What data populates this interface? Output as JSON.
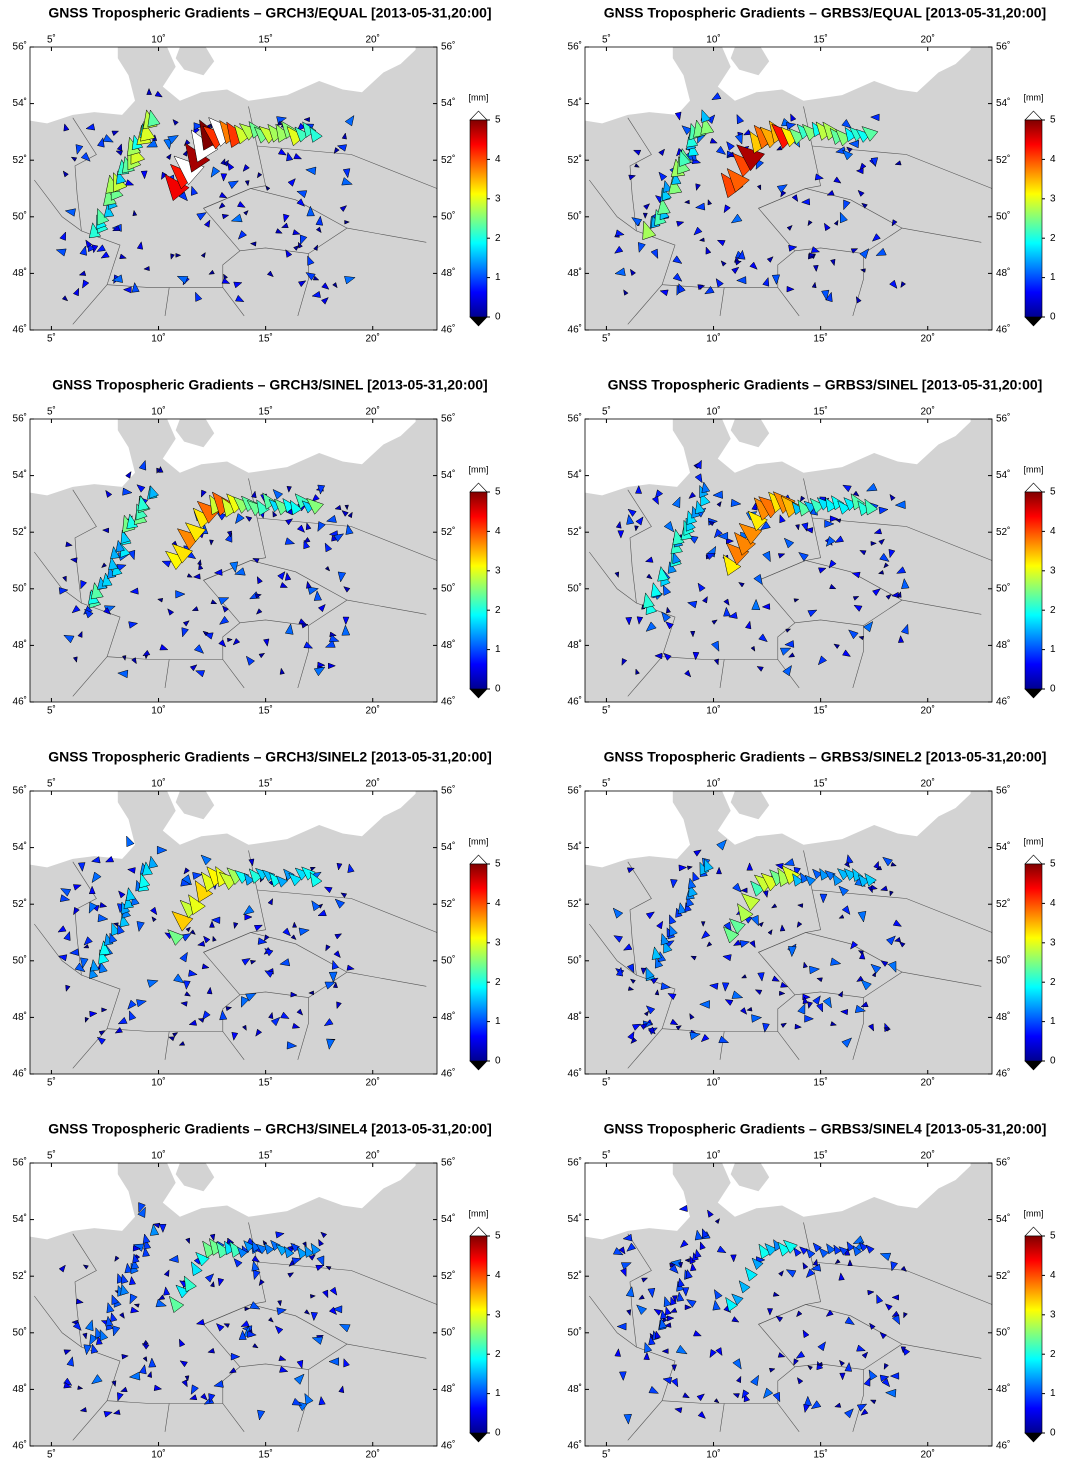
{
  "maps": [
    {
      "title": "GNSS Tropospheric Gradients – GRCH3/EQUAL [2013-05-31,20:00]"
    },
    {
      "title": "GNSS Tropospheric Gradients – GRBS3/EQUAL [2013-05-31,20:00]"
    },
    {
      "title": "GNSS Tropospheric Gradients – GRCH3/SINEL [2013-05-31,20:00]"
    },
    {
      "title": "GNSS Tropospheric Gradients – GRBS3/SINEL [2013-05-31,20:00]"
    },
    {
      "title": "GNSS Tropospheric Gradients – GRCH3/SINEL2 [2013-05-31,20:00]"
    },
    {
      "title": "GNSS Tropospheric Gradients – GRBS3/SINEL2 [2013-05-31,20:00]"
    },
    {
      "title": "GNSS Tropospheric Gradients – GRCH3/SINEL4 [2013-05-31,20:00]"
    },
    {
      "title": "GNSS Tropospheric Gradients – GRBS3/SINEL4 [2013-05-31,20:00]"
    }
  ],
  "axes": {
    "xlim": [
      4,
      23
    ],
    "ylim": [
      46,
      56
    ],
    "xticks": [
      {
        "value": 5,
        "label": "5˚"
      },
      {
        "value": 10,
        "label": "10˚"
      },
      {
        "value": 15,
        "label": "15˚"
      },
      {
        "value": 20,
        "label": "20˚"
      }
    ],
    "yticks": [
      {
        "value": 46,
        "label": "46˚"
      },
      {
        "value": 48,
        "label": "48˚"
      },
      {
        "value": 50,
        "label": "50˚"
      },
      {
        "value": 52,
        "label": "52˚"
      },
      {
        "value": 54,
        "label": "54˚"
      },
      {
        "value": 56,
        "label": "56˚"
      }
    ]
  },
  "colorbar": {
    "label": "[mm]",
    "lim": [
      0,
      5
    ],
    "ticks": [
      0,
      1,
      2,
      3,
      4,
      5
    ]
  }
}
